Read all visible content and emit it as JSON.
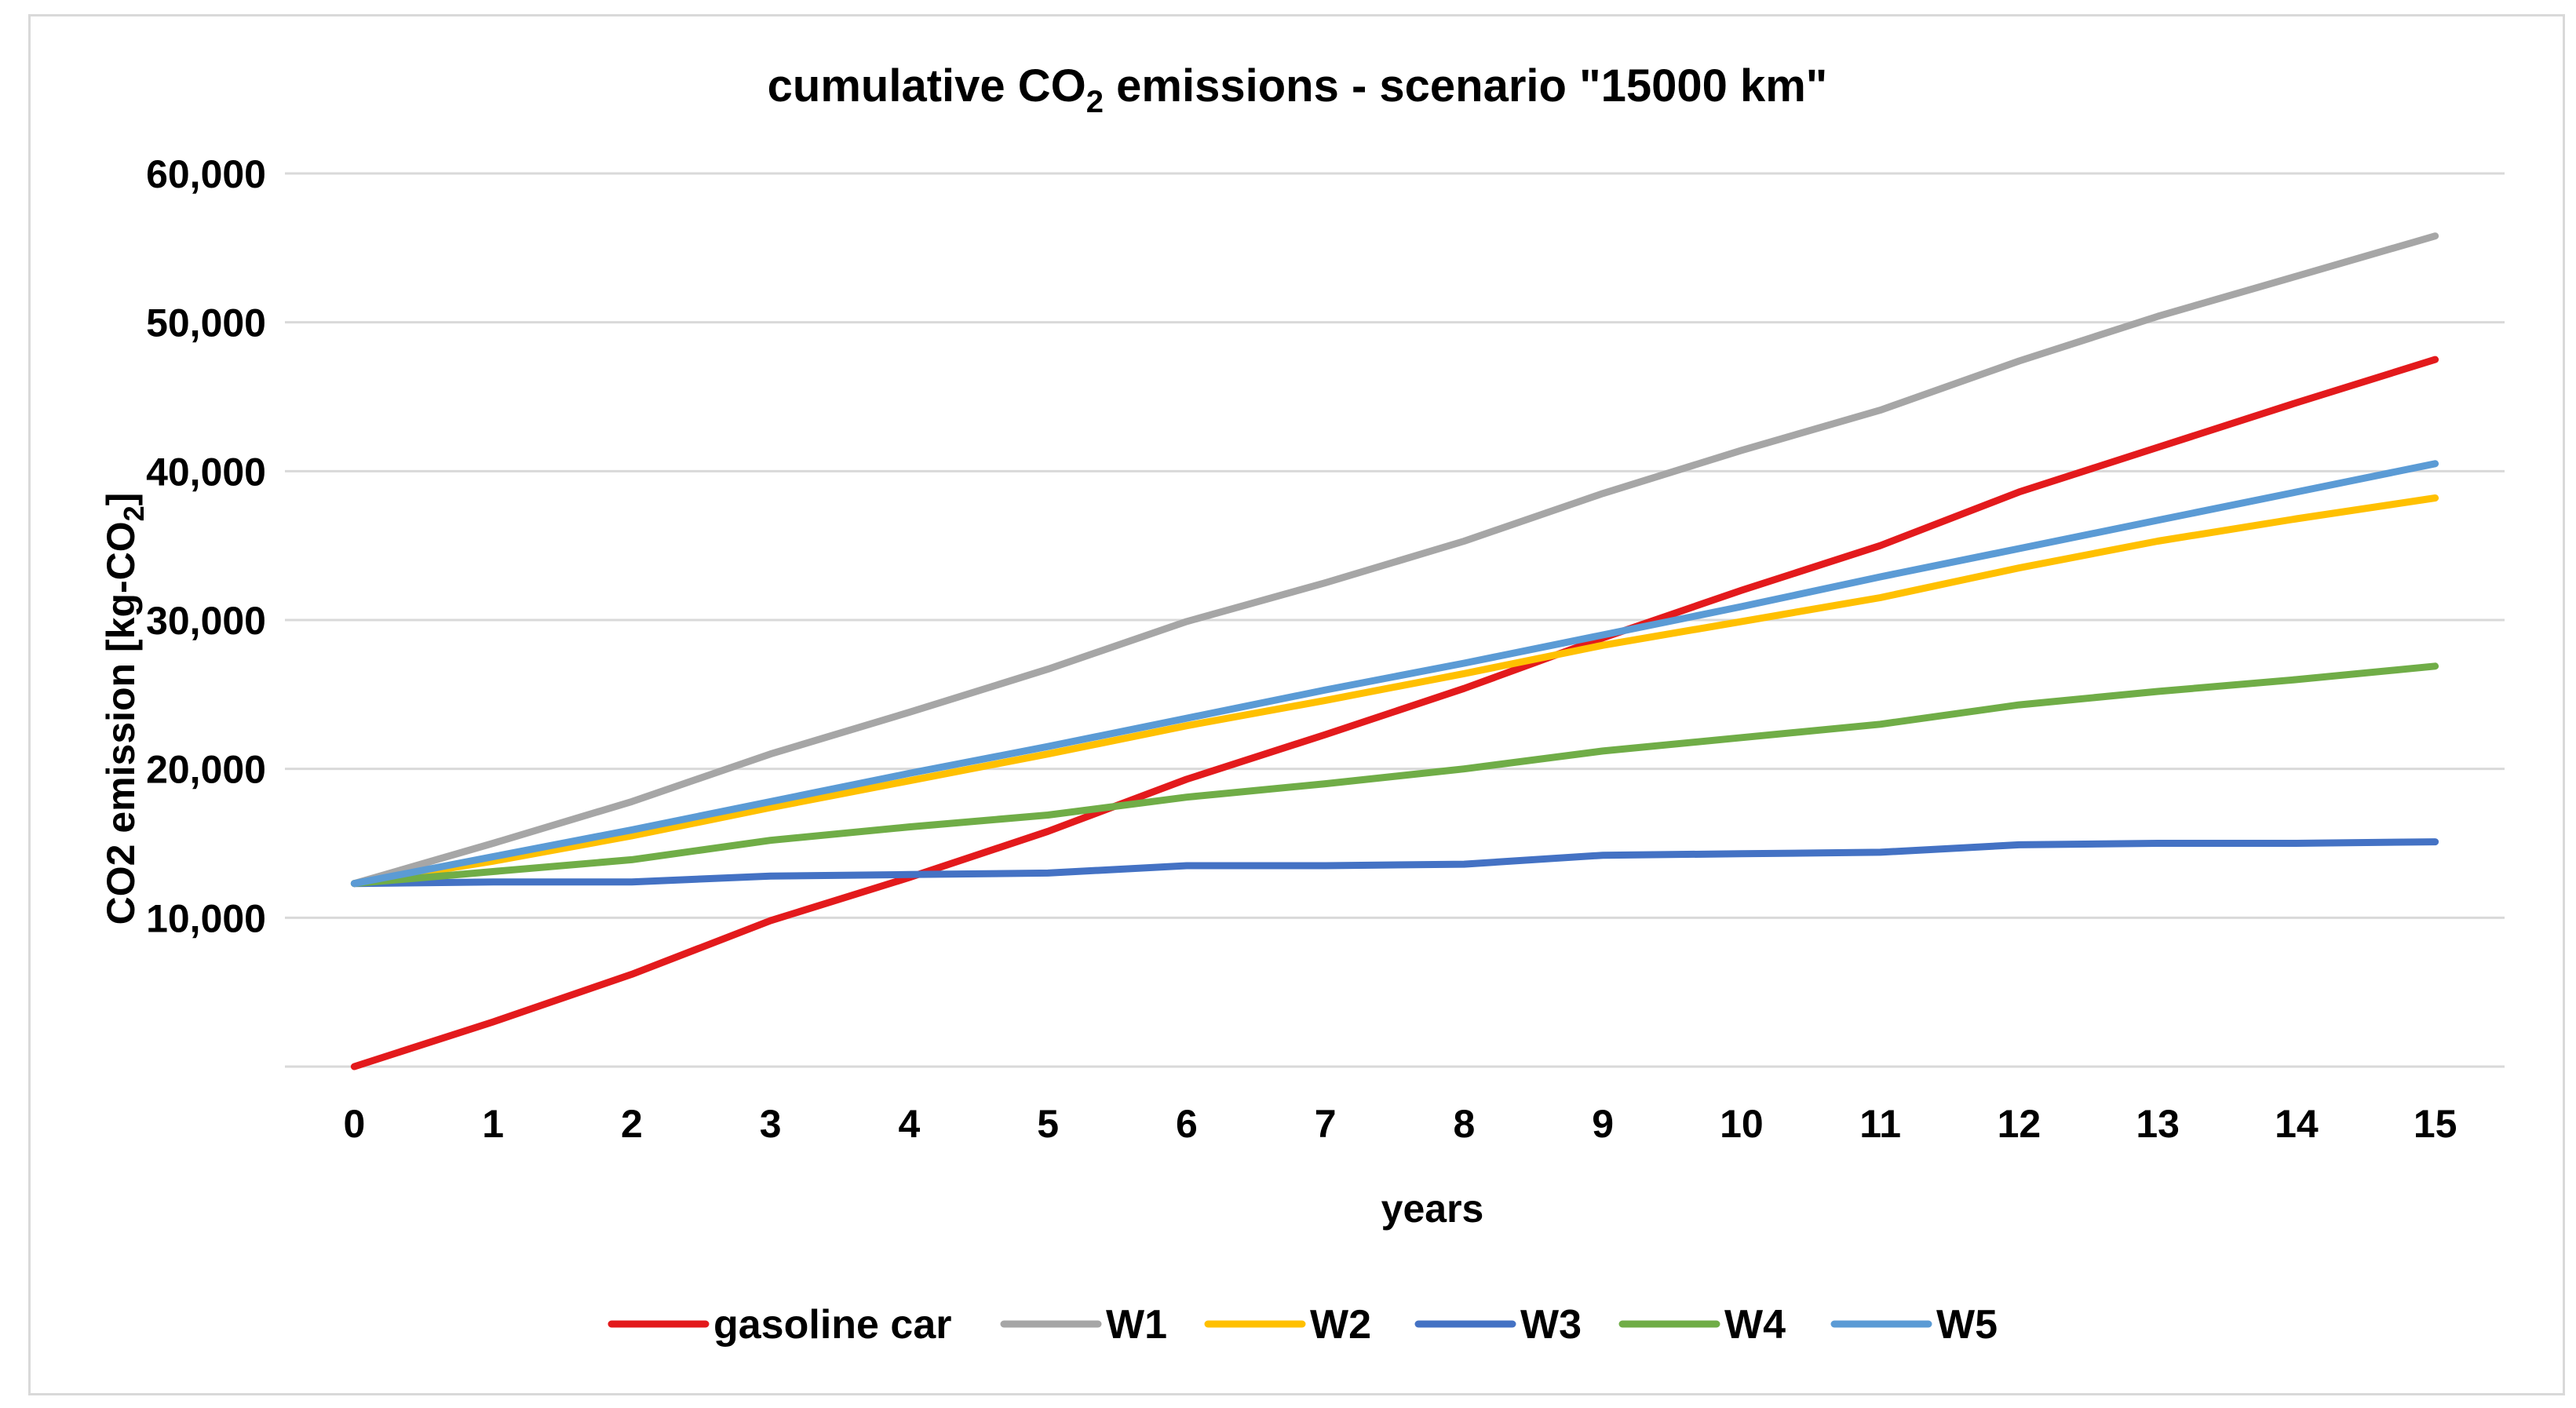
{
  "chart_data": {
    "type": "line",
    "title": "cumulative CO",
    "title_subscript": "2",
    "title_rest": " emissions - scenario \"15000 km\"",
    "xlabel": "years",
    "ylabel": "CO2 emission [kg-CO",
    "ylabel_subscript": "2",
    "ylabel_close": "]",
    "x": [
      0,
      1,
      2,
      3,
      4,
      5,
      6,
      7,
      8,
      9,
      10,
      11,
      12,
      13,
      14,
      15
    ],
    "y_ticks": [
      10000,
      20000,
      30000,
      40000,
      50000,
      60000
    ],
    "y_tick_labels": [
      "10,000",
      "20,000",
      "30,000",
      "40,000",
      "50,000",
      "60,000"
    ],
    "ylim": [
      0,
      60000
    ],
    "grid": true,
    "legend_position": "bottom",
    "series": [
      {
        "name": "gasoline car",
        "color": "#e31a1c",
        "values": [
          0,
          3000,
          6200,
          9800,
          12700,
          15800,
          19300,
          22300,
          25400,
          28800,
          32000,
          35000,
          38600,
          41600,
          44600,
          47500
        ]
      },
      {
        "name": "W1",
        "color": "#a6a6a6",
        "values": [
          12300,
          15000,
          17800,
          21000,
          23800,
          26700,
          29900,
          32500,
          35300,
          38500,
          41400,
          44100,
          47400,
          50400,
          53100,
          55800
        ]
      },
      {
        "name": "W2",
        "color": "#ffc000",
        "values": [
          12300,
          13800,
          15500,
          17400,
          19200,
          21000,
          22900,
          24600,
          26400,
          28300,
          29900,
          31500,
          33500,
          35300,
          36800,
          38200
        ]
      },
      {
        "name": "W3",
        "color": "#4472c4",
        "values": [
          12300,
          12400,
          12400,
          12800,
          12900,
          13000,
          13500,
          13500,
          13600,
          14200,
          14300,
          14400,
          14900,
          15000,
          15000,
          15100
        ]
      },
      {
        "name": "W4",
        "color": "#70ad47",
        "values": [
          12300,
          13100,
          13900,
          15200,
          16100,
          16900,
          18100,
          19000,
          20000,
          21200,
          22100,
          23000,
          24300,
          25200,
          26000,
          26900
        ]
      },
      {
        "name": "W5",
        "color": "#5b9bd5",
        "values": [
          12300,
          14100,
          15900,
          17800,
          19700,
          21500,
          23400,
          25300,
          27100,
          29000,
          30900,
          32900,
          34800,
          36700,
          38600,
          40500
        ]
      }
    ]
  }
}
